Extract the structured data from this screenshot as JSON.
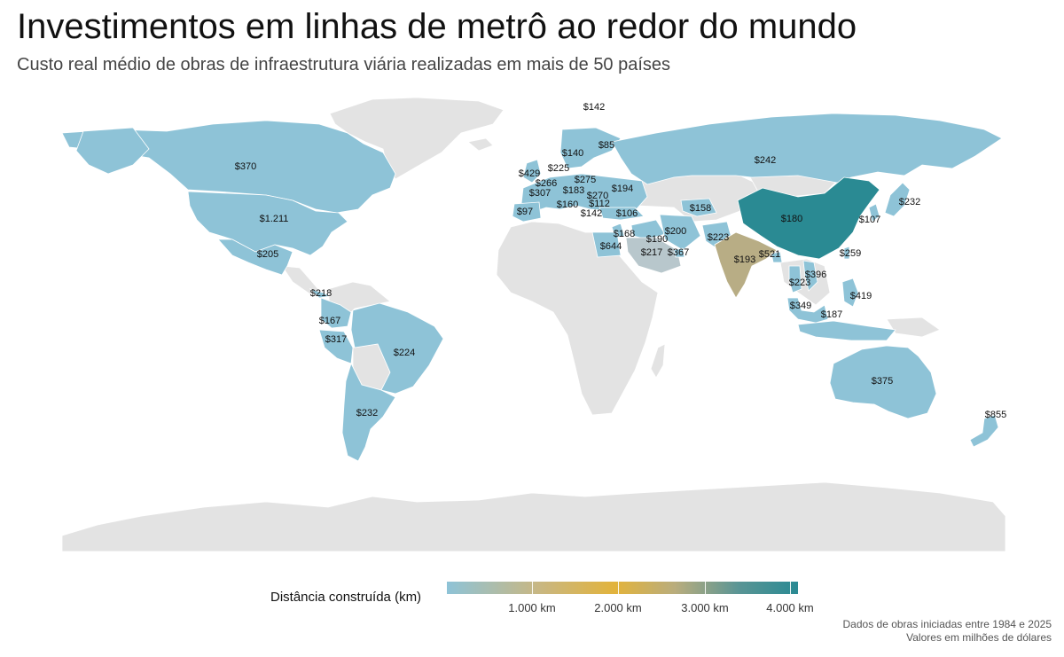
{
  "title": "Investimentos em linhas de metrô ao redor do mundo",
  "subtitle": "Custo real médio de obras de infraestrutura viária realizadas em mais de 50 países",
  "legend": {
    "title": "Distância construída (km)",
    "ticks": [
      "1.000 km",
      "2.000 km",
      "3.000 km",
      "4.000 km"
    ]
  },
  "footer": {
    "line1": "Dados de obras iniciadas entre 1984 e 2025",
    "line2": "Valores em milhões de dólares"
  },
  "colors": {
    "low": "#8ec3d7",
    "india": "#b8ad85",
    "china": "#2a8a93",
    "no_data": "#e3e3e3"
  },
  "labels": [
    {
      "country": "Finlândia/Noruega (norte)",
      "value": "$142"
    },
    {
      "country": "Finlândia",
      "value": "$85"
    },
    {
      "country": "Suécia",
      "value": "$140"
    },
    {
      "country": "Canadá",
      "value": "$370"
    },
    {
      "country": "Rússia",
      "value": "$242"
    },
    {
      "country": "Reino Unido",
      "value": "$429"
    },
    {
      "country": "Dinamarca",
      "value": "$225"
    },
    {
      "country": "Bélgica",
      "value": "$266"
    },
    {
      "country": "Polônia",
      "value": "$275"
    },
    {
      "country": "Alemanha",
      "value": "$194"
    },
    {
      "country": "Ucrânia",
      "value": "$307"
    },
    {
      "country": "França",
      "value": "$183"
    },
    {
      "country": "Hungria",
      "value": "$270"
    },
    {
      "country": "Itália",
      "value": "$160"
    },
    {
      "country": "Romênia",
      "value": "$112"
    },
    {
      "country": "Portugal",
      "value": "$97"
    },
    {
      "country": "Grécia",
      "value": "$142"
    },
    {
      "country": "Turquia",
      "value": "$106"
    },
    {
      "country": "Uzbequistão",
      "value": "$158"
    },
    {
      "country": "Japão",
      "value": "$232"
    },
    {
      "country": "China",
      "value": "$180"
    },
    {
      "country": "Coreia do Sul",
      "value": "$107"
    },
    {
      "country": "Estados Unidos",
      "value": "$1.211"
    },
    {
      "country": "Israel",
      "value": "$168"
    },
    {
      "country": "Irã",
      "value": "$200"
    },
    {
      "country": "Iraque",
      "value": "$190"
    },
    {
      "country": "Paquistão",
      "value": "$223"
    },
    {
      "country": "Egito",
      "value": "$644"
    },
    {
      "country": "Arábia Saudita",
      "value": "$217"
    },
    {
      "country": "Emirados Árabes",
      "value": "$367"
    },
    {
      "country": "Índia",
      "value": "$193"
    },
    {
      "country": "Bangladesh",
      "value": "$521"
    },
    {
      "country": "Taiwan",
      "value": "$259"
    },
    {
      "country": "México",
      "value": "$205"
    },
    {
      "country": "Vietnã",
      "value": "$396"
    },
    {
      "country": "Tailândia",
      "value": "$223"
    },
    {
      "country": "Filipinas",
      "value": "$419"
    },
    {
      "country": "Panamá",
      "value": "$218"
    },
    {
      "country": "Malásia",
      "value": "$349"
    },
    {
      "country": "Indonésia",
      "value": "$187"
    },
    {
      "country": "Colômbia/Equador",
      "value": "$167"
    },
    {
      "country": "Peru",
      "value": "$317"
    },
    {
      "country": "Brasil",
      "value": "$224"
    },
    {
      "country": "Austrália",
      "value": "$375"
    },
    {
      "country": "Chile/Argentina",
      "value": "$232"
    },
    {
      "country": "Nova Zelândia",
      "value": "$855"
    }
  ]
}
